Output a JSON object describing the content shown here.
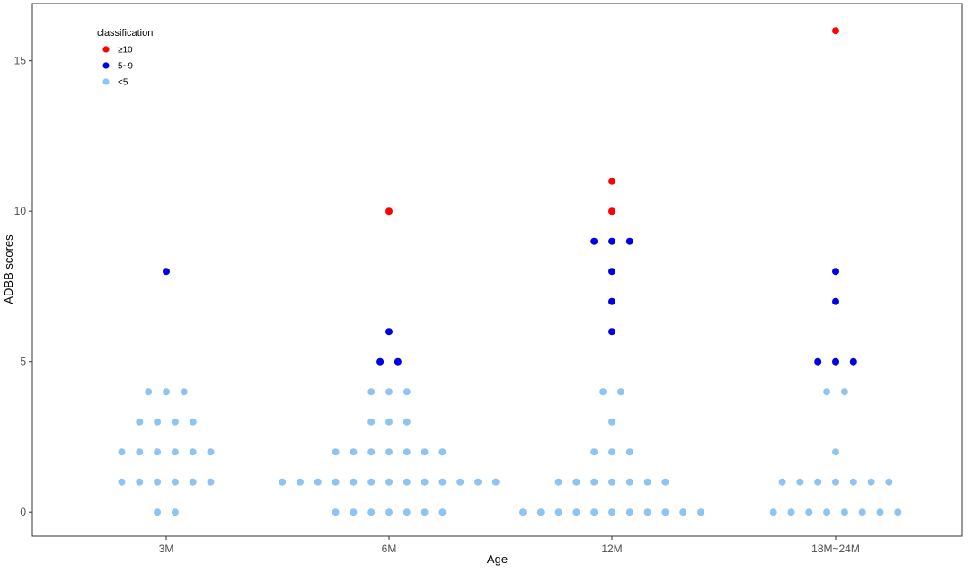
{
  "chart_data": {
    "type": "scatter",
    "subtype": "dot plot",
    "title": "",
    "xlabel": "Age",
    "ylabel": "ADBB scores",
    "categories": [
      "3M",
      "6M",
      "12M",
      "18M~24M"
    ],
    "yticks": [
      0,
      5,
      10,
      15
    ],
    "ylim": [
      -0.8,
      16.9
    ],
    "grid": false,
    "legend": {
      "title": "classification",
      "placement": "top-left",
      "entries": [
        {
          "label": "≥10",
          "color": "#ff0000"
        },
        {
          "label": "5~9",
          "color": "#0000e6"
        },
        {
          "label": "<5",
          "color": "#90c4f0"
        }
      ]
    },
    "points": [
      {
        "category": "3M",
        "score": 0,
        "count": 2
      },
      {
        "category": "3M",
        "score": 1,
        "count": 6
      },
      {
        "category": "3M",
        "score": 2,
        "count": 6
      },
      {
        "category": "3M",
        "score": 3,
        "count": 4
      },
      {
        "category": "3M",
        "score": 4,
        "count": 3
      },
      {
        "category": "3M",
        "score": 8,
        "count": 1
      },
      {
        "category": "6M",
        "score": 0,
        "count": 7
      },
      {
        "category": "6M",
        "score": 1,
        "count": 13
      },
      {
        "category": "6M",
        "score": 2,
        "count": 7
      },
      {
        "category": "6M",
        "score": 3,
        "count": 3
      },
      {
        "category": "6M",
        "score": 4,
        "count": 3
      },
      {
        "category": "6M",
        "score": 5,
        "count": 2
      },
      {
        "category": "6M",
        "score": 6,
        "count": 1
      },
      {
        "category": "6M",
        "score": 10,
        "count": 1
      },
      {
        "category": "12M",
        "score": 0,
        "count": 11
      },
      {
        "category": "12M",
        "score": 1,
        "count": 7
      },
      {
        "category": "12M",
        "score": 2,
        "count": 3
      },
      {
        "category": "12M",
        "score": 3,
        "count": 1
      },
      {
        "category": "12M",
        "score": 4,
        "count": 2
      },
      {
        "category": "12M",
        "score": 6,
        "count": 1
      },
      {
        "category": "12M",
        "score": 7,
        "count": 1
      },
      {
        "category": "12M",
        "score": 8,
        "count": 1
      },
      {
        "category": "12M",
        "score": 9,
        "count": 3
      },
      {
        "category": "12M",
        "score": 10,
        "count": 1
      },
      {
        "category": "12M",
        "score": 11,
        "count": 1
      },
      {
        "category": "18M~24M",
        "score": 0,
        "count": 8
      },
      {
        "category": "18M~24M",
        "score": 1,
        "count": 7
      },
      {
        "category": "18M~24M",
        "score": 2,
        "count": 1
      },
      {
        "category": "18M~24M",
        "score": 4,
        "count": 2
      },
      {
        "category": "18M~24M",
        "score": 5,
        "count": 3
      },
      {
        "category": "18M~24M",
        "score": 7,
        "count": 1
      },
      {
        "category": "18M~24M",
        "score": 8,
        "count": 1
      },
      {
        "category": "18M~24M",
        "score": 16,
        "count": 1
      }
    ]
  }
}
